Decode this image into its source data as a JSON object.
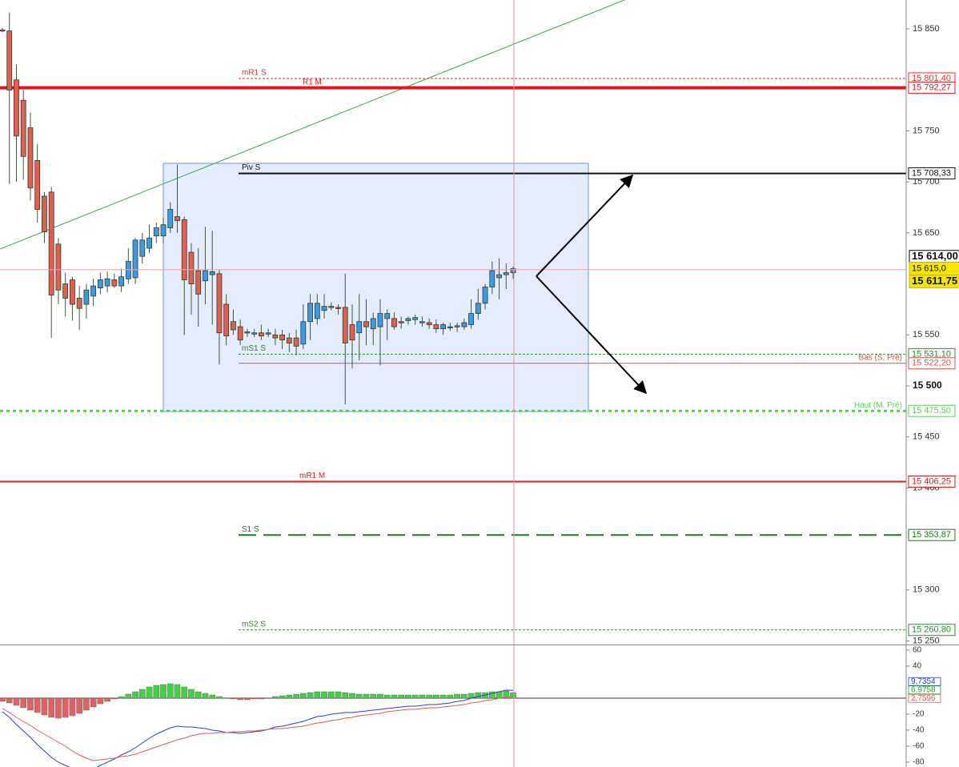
{
  "chart_data": [
    {
      "type": "candlestick",
      "up_color": "#3d9ae0",
      "down_color": "#e0604f",
      "wick_color": "#3f5a3a",
      "open": [
        15849,
        15848,
        15800,
        15780,
        15753,
        15721,
        15686,
        15690,
        15639,
        15600,
        15604,
        15586,
        15580,
        15588,
        15596,
        15598,
        15604,
        15598,
        15605,
        15606,
        15627,
        15635,
        15647,
        15647,
        15655,
        15666,
        15663,
        15631,
        15613,
        15603,
        15609,
        15610,
        15580,
        15563,
        15558,
        15552,
        15552,
        15552,
        15552,
        15550,
        15550,
        15547,
        15547,
        15541,
        15563,
        15566,
        15574,
        15578,
        15577,
        15577,
        15560,
        15552,
        15563,
        15556,
        15558,
        15566,
        15566,
        15563,
        15564,
        15565,
        15563,
        15562,
        15560,
        15556,
        15558,
        15558,
        15558,
        15560,
        15571,
        15581,
        15597,
        15606,
        15609,
        15611
      ],
      "high": [
        15851,
        15866,
        15815,
        15790,
        15768,
        15737,
        15690,
        15695,
        15645,
        15611,
        15607,
        15598,
        15600,
        15605,
        15611,
        15612,
        15610,
        15615,
        15635,
        15645,
        15650,
        15658,
        15660,
        15665,
        15680,
        15717,
        15666,
        15640,
        15635,
        15656,
        15652,
        15614,
        15590,
        15575,
        15565,
        15556,
        15556,
        15560,
        15556,
        15556,
        15555,
        15552,
        15555,
        15580,
        15590,
        15590,
        15590,
        15582,
        15580,
        15610,
        15580,
        15590,
        15585,
        15572,
        15585,
        15575,
        15572,
        15568,
        15568,
        15570,
        15568,
        15566,
        15565,
        15562,
        15562,
        15562,
        15566,
        15585,
        15595,
        15600,
        15622,
        15625,
        15620,
        15617
      ],
      "low": [
        15847,
        15698,
        15700,
        15702,
        15682,
        15660,
        15640,
        15547,
        15580,
        15568,
        15564,
        15555,
        15566,
        15578,
        15590,
        15592,
        15596,
        15592,
        15600,
        15600,
        15620,
        15630,
        15640,
        15640,
        15650,
        15650,
        15550,
        15570,
        15558,
        15580,
        15560,
        15521,
        15540,
        15550,
        15540,
        15548,
        15548,
        15545,
        15548,
        15540,
        15536,
        15533,
        15530,
        15536,
        15545,
        15560,
        15566,
        15574,
        15570,
        15482,
        15517,
        15525,
        15540,
        15540,
        15520,
        15545,
        15555,
        15556,
        15560,
        15560,
        15558,
        15556,
        15552,
        15550,
        15554,
        15553,
        15555,
        15556,
        15565,
        15575,
        15590,
        15585,
        15595,
        15605
      ],
      "close": [
        15848,
        15790,
        15745,
        15725,
        15694,
        15673,
        15651,
        15589,
        15594,
        15586,
        15580,
        15576,
        15594,
        15598,
        15604,
        15605,
        15598,
        15607,
        15622,
        15643,
        15643,
        15645,
        15655,
        15658,
        15673,
        15662,
        15604,
        15600,
        15590,
        15613,
        15612,
        15552,
        15549,
        15555,
        15545,
        15553,
        15552,
        15549,
        15552,
        15547,
        15545,
        15542,
        15539,
        15563,
        15581,
        15581,
        15578,
        15578,
        15576,
        15542,
        15545,
        15563,
        15558,
        15566,
        15571,
        15571,
        15558,
        15562,
        15566,
        15567,
        15563,
        15560,
        15556,
        15560,
        15558,
        15559,
        15562,
        15571,
        15581,
        15597,
        15613,
        15609,
        15611,
        15615
      ],
      "ylim": [
        15246.5,
        15878.3
      ],
      "yticks": [
        {
          "value": 15850,
          "label": "15 850"
        },
        {
          "value": 15750,
          "label": "15 750"
        },
        {
          "value": 15700,
          "label": "15 700"
        },
        {
          "value": 15650,
          "label": "15 650"
        },
        {
          "value": 15550,
          "label": "15 550"
        },
        {
          "value": 15500,
          "label": "15 500",
          "bold": true
        },
        {
          "value": 15450,
          "label": "15 450"
        },
        {
          "value": 15400,
          "label": "15 400"
        },
        {
          "value": 15300,
          "label": "15 300"
        },
        {
          "value": 15250,
          "label": "15 250"
        }
      ],
      "levels": [
        {
          "name": "mR1 S",
          "value": 15801.4,
          "value_label": "15 801,40",
          "color": "#e03030",
          "style": "dashed"
        },
        {
          "name": "R1 M",
          "value": 15792.27,
          "value_label": "15 792,27",
          "color": "#e8141c",
          "style": "thick-solid"
        },
        {
          "name": "Piv S",
          "value": 15708.33,
          "value_label": "15 708,33",
          "color": "#111111",
          "style": "medium-solid"
        },
        {
          "name": "mS1 S",
          "value": 15531.1,
          "value_label": "15 531,10",
          "color": "#2e8b2e",
          "style": "dashed"
        },
        {
          "name": "Bas (S, Pré)",
          "value": 15522.2,
          "value_label": "15 522,20",
          "color": "#e05050",
          "style": "solid"
        },
        {
          "name": "Haut (M, Pré)",
          "value": 15475.5,
          "value_label": "15 475,50",
          "color": "#5ccc5c",
          "style": "thick-dotted"
        },
        {
          "name": "mR1 M",
          "value": 15406.25,
          "value_label": "15 406,25",
          "color": "#e01818",
          "style": "medium-solid"
        },
        {
          "name": "S1 S",
          "value": 15353.87,
          "value_label": "15 353,87",
          "color": "#1e7a1e",
          "style": "long-dash"
        },
        {
          "name": "mS2 S",
          "value": 15260.8,
          "value_label": "15 260,80",
          "color": "#2e8b2e",
          "style": "dashed"
        }
      ],
      "markers": [
        {
          "value": 15614,
          "label": "15 614,00"
        },
        {
          "value": 15615,
          "label": "15 615,0"
        },
        {
          "value": 15611.75,
          "label": "15 611,75"
        }
      ]
    },
    {
      "type": "macd",
      "histogram": {
        "up_color": "#44d044",
        "down_color": "#e06262",
        "last_label": "6,9758",
        "values": [
          -4,
          -6,
          -9,
          -12,
          -15,
          -18,
          -21,
          -24,
          -25,
          -24,
          -22,
          -19,
          -15,
          -11,
          -7,
          -4,
          -1,
          2,
          5,
          8,
          11,
          14,
          16,
          17,
          18,
          17,
          14,
          11,
          8,
          6,
          4,
          2,
          0,
          -1,
          -2,
          -2,
          -1,
          -1,
          0,
          2,
          3,
          4,
          5,
          6,
          7,
          8,
          8,
          8,
          8,
          7,
          6,
          5,
          5,
          5,
          5,
          4,
          4,
          4,
          4,
          4,
          4,
          4,
          4,
          4,
          4,
          5,
          5,
          6,
          7,
          7,
          8,
          8,
          9,
          6.9758
        ]
      },
      "series": [
        {
          "color": "#2a3fd6",
          "last_label": "9,7354",
          "values": [
            -17,
            -24,
            -33,
            -41,
            -49,
            -58,
            -66,
            -74,
            -80,
            -84,
            -88,
            -90,
            -90,
            -89,
            -84,
            -80,
            -76,
            -71,
            -67,
            -62,
            -56,
            -50,
            -45,
            -41,
            -37,
            -35,
            -36,
            -36,
            -37,
            -38,
            -40,
            -41,
            -43,
            -43,
            -44,
            -43,
            -42,
            -41,
            -39,
            -36,
            -35,
            -33,
            -31,
            -29,
            -26,
            -23,
            -22,
            -20,
            -19,
            -18,
            -18,
            -17,
            -16,
            -15,
            -14,
            -13,
            -12,
            -11,
            -10,
            -10,
            -9,
            -8,
            -8,
            -7,
            -6,
            -4,
            -3,
            0,
            2,
            4,
            6,
            8,
            10,
            9.7354
          ]
        },
        {
          "color": "#e05a5a",
          "last_label": "2,7596",
          "values": [
            -13,
            -18,
            -24,
            -29,
            -34,
            -40,
            -45,
            -50,
            -55,
            -60,
            -66,
            -71,
            -75,
            -78,
            -77,
            -76,
            -75,
            -73,
            -72,
            -70,
            -67,
            -64,
            -61,
            -58,
            -55,
            -52,
            -50,
            -47,
            -45,
            -44,
            -44,
            -43,
            -43,
            -42,
            -42,
            -41,
            -41,
            -40,
            -39,
            -38,
            -38,
            -37,
            -36,
            -35,
            -33,
            -31,
            -30,
            -28,
            -27,
            -25,
            -24,
            -22,
            -21,
            -20,
            -19,
            -17,
            -16,
            -15,
            -14,
            -14,
            -13,
            -12,
            -12,
            -11,
            -10,
            -9,
            -8,
            -6,
            -5,
            -3,
            -2,
            0,
            1,
            2.7596
          ]
        }
      ],
      "ylim": [
        -86,
        66
      ],
      "yticks": [
        60,
        40,
        -20,
        -40,
        -60,
        -80
      ]
    }
  ]
}
